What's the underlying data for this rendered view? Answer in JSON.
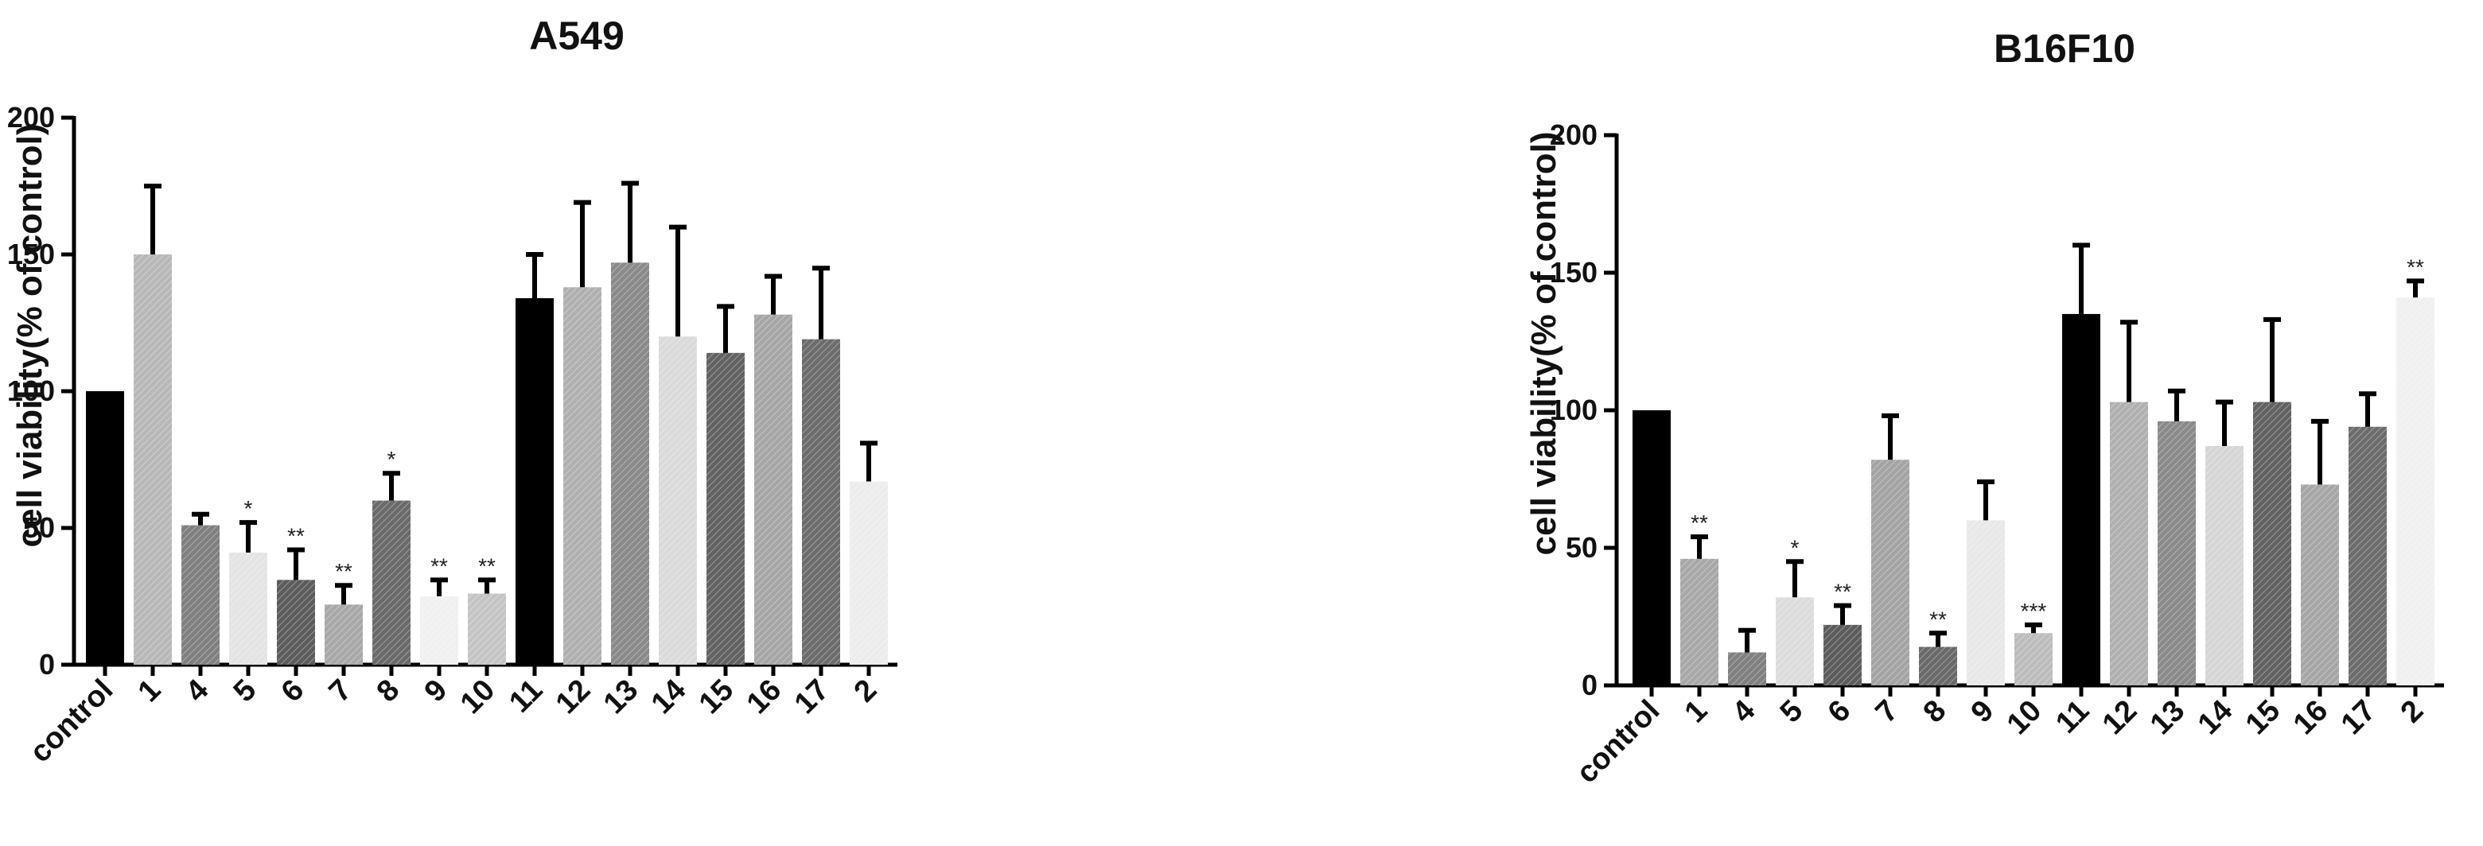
{
  "chart_data": [
    {
      "type": "bar",
      "title": "A549",
      "ylabel": "cell viability(% of control)",
      "xlabel": "",
      "ylim": [
        0,
        200
      ],
      "yticks": [
        0,
        50,
        100,
        150,
        200
      ],
      "categories": [
        "control",
        "1",
        "4",
        "5",
        "6",
        "7",
        "8",
        "9",
        "10",
        "11",
        "12",
        "13",
        "14",
        "15",
        "16",
        "17",
        "2"
      ],
      "values": [
        100,
        150,
        51,
        41,
        31,
        22,
        60,
        25,
        26,
        134,
        138,
        147,
        120,
        114,
        128,
        119,
        67
      ],
      "errors": [
        0,
        25,
        4,
        11,
        11,
        7,
        10,
        6,
        5,
        16,
        31,
        29,
        40,
        17,
        14,
        26,
        14
      ],
      "significance": [
        "",
        "",
        "",
        "*",
        "**",
        "**",
        "*",
        "**",
        "**",
        "",
        "",
        "",
        "",
        "",
        "",
        "",
        ""
      ],
      "colors": [
        "#000000",
        "#b8b8b8",
        "#808080",
        "#e4e4e4",
        "#5c5c5c",
        "#a8a8a8",
        "#6a6a6a",
        "#f0f0f0",
        "#c4c4c4",
        "#000000",
        "#b0b0b0",
        "#8a8a8a",
        "#dadada",
        "#626262",
        "#a6a6a6",
        "#6c6c6c",
        "#ececec"
      ]
    },
    {
      "type": "bar",
      "title": "B16F10",
      "ylabel": "cell viability(% of control)",
      "xlabel": "",
      "ylim": [
        0,
        200
      ],
      "yticks": [
        0,
        50,
        100,
        150,
        200
      ],
      "categories": [
        "control",
        "1",
        "4",
        "5",
        "6",
        "7",
        "8",
        "9",
        "10",
        "11",
        "12",
        "13",
        "14",
        "15",
        "16",
        "17",
        "2"
      ],
      "values": [
        100,
        46,
        12,
        32,
        22,
        82,
        14,
        60,
        19,
        135,
        103,
        96,
        87,
        103,
        73,
        94,
        141
      ],
      "errors": [
        0,
        8,
        8,
        13,
        7,
        16,
        5,
        14,
        3,
        25,
        29,
        11,
        16,
        30,
        23,
        12,
        6
      ],
      "significance": [
        "",
        "**",
        "",
        "*",
        "**",
        "",
        "**",
        "",
        "***",
        "",
        "",
        "",
        "",
        "",
        "",
        "",
        "**"
      ],
      "colors": [
        "#000000",
        "#a8a8a8",
        "#808080",
        "#dcdcdc",
        "#5c5c5c",
        "#a4a4a4",
        "#6a6a6a",
        "#e8e8e8",
        "#bcbcbc",
        "#000000",
        "#b0b0b0",
        "#8a8a8a",
        "#d6d6d6",
        "#626262",
        "#a6a6a6",
        "#6c6c6c",
        "#f0f0f0"
      ]
    }
  ]
}
